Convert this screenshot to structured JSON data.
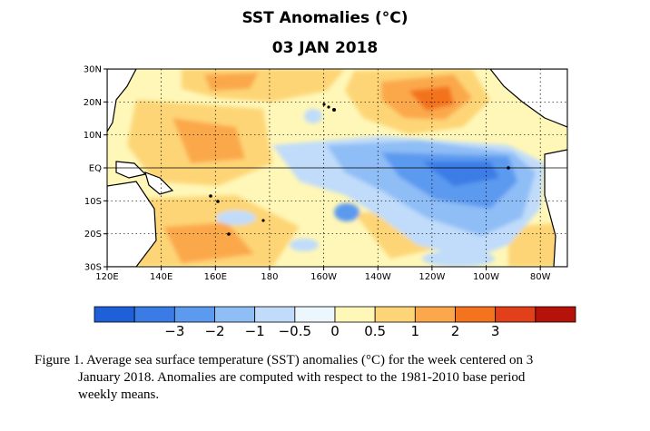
{
  "title": "SST Anomalies (°C)",
  "subtitle": "03 JAN 2018",
  "map": {
    "lat_ticks": [
      "30N",
      "20N",
      "10N",
      "EQ",
      "10S",
      "20S",
      "30S"
    ],
    "lon_ticks": [
      "120E",
      "140E",
      "160E",
      "180",
      "160W",
      "140W",
      "120W",
      "100W",
      "80W"
    ],
    "lon_range": [
      120,
      290
    ],
    "lat_range": [
      -30,
      30
    ],
    "grid": "dotted at 10° spacing, solid equator line",
    "land_color": "#ffffff",
    "coastline_color": "#000000"
  },
  "colorbar": {
    "labels": [
      "−3",
      "−2",
      "−1",
      "−0.5",
      "0",
      "0.5",
      "1",
      "2",
      "3"
    ],
    "colors": [
      "#1f5fd8",
      "#3a7be6",
      "#5c9af0",
      "#8fbdf6",
      "#c0dcfa",
      "#ecf6fd",
      "#fff7b8",
      "#fdd576",
      "#fba84c",
      "#f3731f",
      "#e1401a",
      "#b5130a"
    ]
  },
  "caption": {
    "line1": "Figure 1. Average sea surface temperature (SST) anomalies (°C) for the week centered on 3",
    "line2": "January 2018.  Anomalies are computed with respect to the 1981-2010 base period",
    "line3": "weekly means."
  }
}
